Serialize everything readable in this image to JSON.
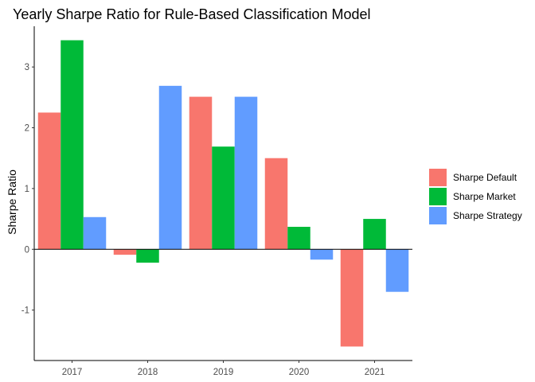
{
  "chart_data": {
    "type": "bar",
    "title": "Yearly Sharpe Ratio for Rule-Based Classification Model",
    "xlabel": "",
    "ylabel": "Sharpe Ratio",
    "categories": [
      "2017",
      "2018",
      "2019",
      "2020",
      "2021"
    ],
    "series": [
      {
        "name": "Sharpe Default",
        "color": "#F8766D",
        "values": [
          2.25,
          -0.09,
          2.51,
          1.5,
          -1.6
        ]
      },
      {
        "name": "Sharpe Market",
        "color": "#00BA38",
        "values": [
          3.44,
          -0.22,
          1.69,
          0.37,
          0.5
        ]
      },
      {
        "name": "Sharpe Strategy",
        "color": "#619CFF",
        "values": [
          0.53,
          2.69,
          2.51,
          -0.17,
          -0.7
        ]
      }
    ],
    "yticks": [
      -1,
      0,
      1,
      2,
      3
    ],
    "ylim": [
      -1.83,
      3.67
    ],
    "grid": false,
    "legend_position": "right"
  }
}
